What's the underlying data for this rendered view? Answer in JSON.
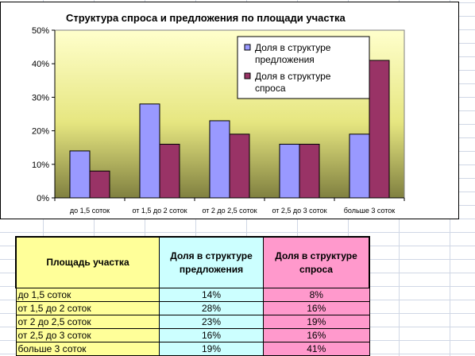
{
  "chart_data": {
    "type": "bar",
    "title": "Структура спроса и предложения по площади участка",
    "categories": [
      "до 1,5 соток",
      "от 1,5 до 2 соток",
      "от 2 до 2,5 соток",
      "от 2,5 до 3 соток",
      "больше 3 соток"
    ],
    "series": [
      {
        "name": "Доля в структуре предложения",
        "legend_lines": [
          "Доля в структуре",
          "предложения"
        ],
        "values": [
          14,
          28,
          23,
          16,
          19
        ],
        "color": "#9999ff"
      },
      {
        "name": "Доля в структуре спроса",
        "legend_lines": [
          "Доля в структуре",
          "спроса"
        ],
        "values": [
          8,
          16,
          19,
          16,
          41
        ],
        "color": "#993366"
      }
    ],
    "y_ticks": [
      "0%",
      "10%",
      "20%",
      "30%",
      "40%",
      "50%"
    ],
    "ylim": [
      0,
      50
    ],
    "legend_position": "top-right",
    "plot_background": [
      "#ffffcc",
      "#e6e680",
      "#808040"
    ]
  },
  "table": {
    "headers": [
      "Площадь участка",
      "Доля в структуре предложения",
      "Доля в структуре спроса"
    ],
    "rows": [
      [
        "до 1,5 соток",
        "14%",
        "8%"
      ],
      [
        "от 1,5 до 2 соток",
        "28%",
        "16%"
      ],
      [
        "от 2 до 2,5 соток",
        "23%",
        "19%"
      ],
      [
        "от 2,5 до 3 соток",
        "16%",
        "16%"
      ],
      [
        "больше 3 соток",
        "19%",
        "41%"
      ]
    ]
  }
}
